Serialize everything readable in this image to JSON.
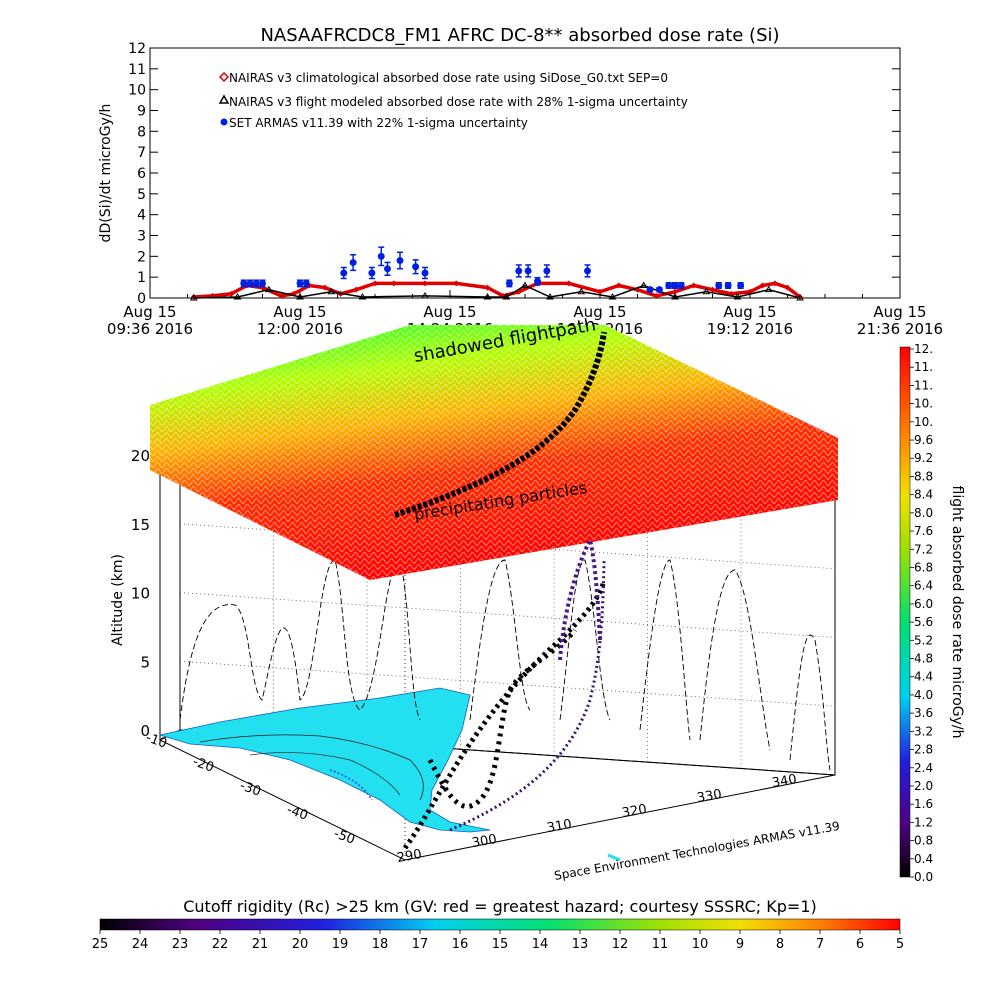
{
  "chart_data": [
    {
      "type": "line",
      "title": "NASAAFRCDC8_FM1 AFRC DC-8** absorbed dose rate (Si)",
      "ylabel": "dD(Si)/dt microGy/h",
      "ylim": [
        0,
        12
      ],
      "y_ticks": [
        "0",
        "1",
        "2",
        "3",
        "4",
        "5",
        "6",
        "7",
        "8",
        "9",
        "10",
        "11",
        "12"
      ],
      "x_ticks": [
        {
          "top": "Aug 15",
          "bottom": "09:36 2016"
        },
        {
          "top": "Aug 15",
          "bottom": "12:00 2016"
        },
        {
          "top": "Aug 15",
          "bottom": "14:24 2016"
        },
        {
          "top": "Aug 15",
          "bottom": "16:48 2016"
        },
        {
          "top": "Aug 15",
          "bottom": "19:12 2016"
        },
        {
          "top": "Aug 15",
          "bottom": "21:36 2016"
        }
      ],
      "legend_position": "top-left",
      "series": [
        {
          "name": "NAIRAS v3 climatological absorbed dose rate using SiDose_G0.txt SEP=0",
          "color": "#e00000",
          "marker": "diamond",
          "x": [
            10.3,
            10.6,
            10.9,
            11.15,
            11.4,
            11.7,
            11.9,
            12.15,
            12.4,
            12.65,
            12.9,
            13.2,
            13.5,
            14.0,
            14.5,
            15.0,
            15.25,
            15.5,
            15.8,
            16.3,
            16.8,
            17.1,
            17.4,
            17.7,
            18.0,
            18.3,
            18.6,
            18.9,
            19.2,
            19.4,
            19.6,
            19.8,
            20.0
          ],
          "y": [
            0.05,
            0.1,
            0.2,
            0.6,
            0.5,
            0.1,
            0.2,
            0.6,
            0.5,
            0.2,
            0.4,
            0.7,
            0.7,
            0.7,
            0.7,
            0.5,
            0.1,
            0.3,
            0.7,
            0.7,
            0.3,
            0.6,
            0.4,
            0.1,
            0.3,
            0.6,
            0.4,
            0.2,
            0.3,
            0.6,
            0.7,
            0.5,
            0.05
          ]
        },
        {
          "name": "NAIRAS v3 flight modeled absorbed dose rate with 28% 1-sigma uncertainty",
          "color": "#000000",
          "marker": "triangle",
          "x": [
            10.3,
            11.0,
            11.5,
            12.0,
            12.5,
            13.0,
            14.0,
            15.0,
            15.3,
            15.6,
            16.0,
            16.5,
            17.0,
            17.5,
            18.0,
            18.5,
            19.0,
            19.5,
            20.0
          ],
          "y": [
            0.0,
            0.05,
            0.4,
            0.05,
            0.3,
            0.05,
            0.1,
            0.05,
            0.05,
            0.6,
            0.05,
            0.3,
            0.05,
            0.6,
            0.05,
            0.3,
            0.05,
            0.4,
            0.0
          ]
        },
        {
          "name": "SET ARMAS v11.39 with 22% 1-sigma uncertainty",
          "color": "#0020e0",
          "marker": "circle",
          "x": [
            11.1,
            11.2,
            11.3,
            11.4,
            12.0,
            12.1,
            12.7,
            12.85,
            13.15,
            13.3,
            13.4,
            13.6,
            13.85,
            14.0,
            15.35,
            15.5,
            15.65,
            15.8,
            15.95,
            16.6,
            17.6,
            17.75,
            17.9,
            18.0,
            18.1,
            18.7,
            18.85,
            19.05
          ],
          "y": [
            0.7,
            0.7,
            0.7,
            0.7,
            0.7,
            0.7,
            1.2,
            1.7,
            1.2,
            2.0,
            1.4,
            1.8,
            1.5,
            1.2,
            0.7,
            1.3,
            1.3,
            0.8,
            1.3,
            1.3,
            0.4,
            0.4,
            0.6,
            0.6,
            0.6,
            0.6,
            0.6,
            0.6
          ]
        }
      ]
    },
    {
      "type": "scatter",
      "zlabel": "Altitude (km)",
      "z_ticks": [
        "0",
        "5",
        "10",
        "15",
        "20"
      ],
      "lat_ticks": [
        "-10",
        "-20",
        "-30",
        "-40",
        "-50"
      ],
      "lon_ticks": [
        "290",
        "300",
        "310",
        "320",
        "330",
        "340"
      ],
      "annotations": [
        "shadowed flightpath",
        "precipitating particles"
      ],
      "credit": "Space Environment Technologies ARMAS v11.39",
      "colorbar": {
        "label": "flight absorbed dose rate microGy/h",
        "ticks": [
          "0.0",
          "0.4",
          "0.8",
          "1.2",
          "1.6",
          "2.0",
          "2.4",
          "2.8",
          "3.2",
          "3.6",
          "4.0",
          "4.4",
          "4.8",
          "5.2",
          "5.6",
          "6.0",
          "6.4",
          "6.8",
          "7.2",
          "7.6",
          "8.0",
          "8.4",
          "8.8",
          "9.2",
          "9.6",
          "10.",
          "10.",
          "11.",
          "11.",
          "12."
        ]
      }
    },
    {
      "type": "heatmap",
      "title": "Cutoff rigidity (Rc) >25 km (GV: red = greatest hazard; courtesy SSSRC; Kp=1)",
      "ticks": [
        "25",
        "24",
        "23",
        "22",
        "21",
        "20",
        "19",
        "18",
        "17",
        "16",
        "15",
        "14",
        "13",
        "12",
        "11",
        "10",
        "9",
        "8",
        "7",
        "6",
        "5"
      ]
    }
  ]
}
